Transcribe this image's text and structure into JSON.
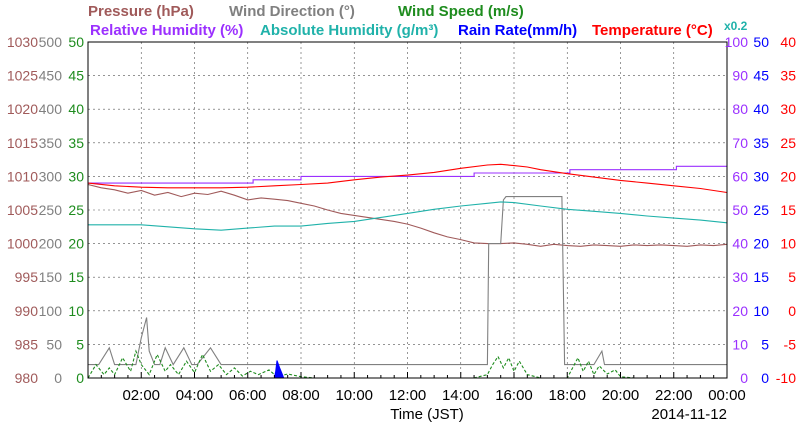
{
  "chart_data": {
    "type": "line",
    "title": "",
    "legend": {
      "row1": [
        {
          "key": "pressure",
          "label": "Pressure (hPa)",
          "color": "#a05a5a"
        },
        {
          "key": "wind_direction",
          "label": "Wind Direction (°)",
          "color": "#808080"
        },
        {
          "key": "wind_speed",
          "label": "Wind Speed (m/s)",
          "color": "#1e8c1e"
        }
      ],
      "row2": [
        {
          "key": "relative_humidity",
          "label": "Relative Humidity (%)",
          "color": "#9b30ff"
        },
        {
          "key": "absolute_humidity",
          "label": "Absolute Humidity (g/m³)",
          "color": "#20b2aa"
        },
        {
          "key": "rain_rate",
          "label": "Rain Rate(mm/h)",
          "color": "#0000ff"
        },
        {
          "key": "temperature",
          "label": "Temperature (°C)",
          "color": "#ff0000"
        }
      ],
      "abs_hum_scale_note": "x0.2"
    },
    "xlabel": "Time (JST)",
    "date": "2014-11-12",
    "x_range_hours": [
      0,
      24
    ],
    "x_ticks": [
      "02:00",
      "04:00",
      "06:00",
      "08:00",
      "10:00",
      "12:00",
      "14:00",
      "16:00",
      "18:00",
      "20:00",
      "22:00",
      "00:00"
    ],
    "y_axes": {
      "pressure": {
        "min": 980,
        "max": 1030,
        "ticks": [
          "1030",
          "1025",
          "1020",
          "1015",
          "1010",
          "1005",
          "1000",
          "995",
          "990",
          "985",
          "980"
        ],
        "color": "#a05a5a"
      },
      "wind_direction": {
        "min": 0,
        "max": 500,
        "ticks": [
          "500",
          "450",
          "400",
          "350",
          "300",
          "250",
          "200",
          "150",
          "100",
          "50",
          "0"
        ],
        "color": "#808080"
      },
      "wind_speed": {
        "min": 0,
        "max": 50,
        "ticks": [
          "50",
          "45",
          "40",
          "35",
          "30",
          "25",
          "20",
          "15",
          "10",
          "5",
          "0"
        ],
        "color": "#1e8c1e"
      },
      "relative_humidity": {
        "min": 0,
        "max": 100,
        "ticks": [
          "100",
          "90",
          "80",
          "70",
          "60",
          "50",
          "40",
          "30",
          "20",
          "10",
          "0"
        ],
        "color": "#9b30ff"
      },
      "rain_rate": {
        "min": 0,
        "max": 50,
        "ticks": [
          "50",
          "45",
          "40",
          "35",
          "30",
          "25",
          "20",
          "15",
          "10",
          "5",
          "0"
        ],
        "color": "#0000ff"
      },
      "temperature": {
        "min": -10,
        "max": 40,
        "ticks": [
          "40",
          "35",
          "30",
          "25",
          "20",
          "15",
          "10",
          "5",
          "0",
          "-5",
          "-10"
        ],
        "color": "#ff0000"
      }
    },
    "grid": true,
    "series": [
      {
        "key": "pressure",
        "x": [
          0,
          0.5,
          1,
          1.5,
          2,
          2.5,
          3,
          3.5,
          4,
          4.5,
          5,
          5.5,
          6,
          6.5,
          7,
          7.5,
          8,
          8.5,
          9,
          9.5,
          10,
          10.5,
          11,
          11.5,
          12,
          12.5,
          13,
          13.5,
          14,
          14.5,
          15,
          15.5,
          16,
          16.5,
          17,
          17.5,
          18,
          18.5,
          19,
          19.5,
          20,
          20.5,
          21,
          21.5,
          22,
          22.5,
          23,
          23.5,
          24
        ],
        "y": [
          1008.8,
          1008.3,
          1008.0,
          1007.5,
          1007.9,
          1007.2,
          1007.6,
          1007.0,
          1007.5,
          1007.3,
          1007.8,
          1007.2,
          1006.5,
          1006.8,
          1006.6,
          1006.4,
          1006.0,
          1005.6,
          1005.0,
          1004.5,
          1004.2,
          1003.9,
          1003.6,
          1003.3,
          1002.9,
          1002.3,
          1001.6,
          1001.0,
          1000.6,
          1000.1,
          1000.0,
          1000.0,
          1000.1,
          999.9,
          999.6,
          999.9,
          999.7,
          999.6,
          999.8,
          999.7,
          999.6,
          999.8,
          999.7,
          999.8,
          999.7,
          999.6,
          999.8,
          999.7,
          999.9
        ]
      },
      {
        "key": "wind_direction",
        "x": [
          0,
          0.4,
          0.8,
          1.0,
          1.8,
          2.0,
          2.2,
          2.3,
          2.5,
          2.7,
          2.9,
          3.2,
          3.6,
          3.9,
          4.1,
          4.6,
          5.0,
          5.3,
          6.0,
          7.0,
          8.0,
          9.0,
          10.0,
          11.0,
          12.0,
          13.0,
          14.0,
          15.0,
          15.05,
          15.1,
          15.3,
          15.5,
          15.6,
          15.7,
          16.0,
          16.2,
          17.0,
          17.8,
          17.9,
          18.0,
          18.5,
          19.0,
          19.3,
          19.4,
          19.6,
          19.8,
          20.0,
          21.0,
          22.0,
          23.0,
          24.0
        ],
        "y": [
          20,
          20,
          45,
          20,
          20,
          60,
          90,
          40,
          20,
          20,
          45,
          20,
          45,
          20,
          20,
          45,
          20,
          20,
          20,
          20,
          20,
          20,
          20,
          20,
          20,
          20,
          20,
          20,
          200,
          200,
          200,
          200,
          265,
          270,
          270,
          270,
          270,
          270,
          20,
          20,
          20,
          20,
          40,
          20,
          20,
          20,
          20,
          20,
          20,
          20,
          20
        ]
      },
      {
        "key": "wind_speed",
        "x": [
          0,
          0.3,
          0.6,
          0.8,
          1.0,
          1.3,
          1.6,
          1.8,
          2.0,
          2.3,
          2.6,
          2.9,
          3.1,
          3.4,
          3.7,
          4.0,
          4.3,
          4.6,
          4.9,
          5.2,
          5.5,
          5.8,
          6.1,
          6.4,
          6.8,
          7.1,
          7.5,
          8.0,
          8.5,
          9.0,
          10.0,
          11.0,
          12.0,
          13.0,
          14.0,
          14.5,
          15.0,
          15.2,
          15.4,
          15.6,
          15.8,
          16.0,
          16.2,
          16.5,
          17.0,
          17.5,
          18.0,
          18.2,
          18.4,
          18.6,
          18.8,
          19.0,
          19.2,
          19.5,
          19.8,
          20.0,
          20.5,
          21.0,
          22.0,
          23.0,
          24.0
        ],
        "y": [
          0,
          2,
          0.5,
          1.5,
          0.5,
          3,
          1,
          4,
          2,
          0.5,
          3.5,
          1,
          2,
          0.5,
          2.5,
          0.8,
          3.5,
          1,
          2,
          0.5,
          1.5,
          0.3,
          1,
          0.5,
          1.2,
          0.2,
          0.6,
          0.2,
          0,
          0,
          0,
          0,
          0,
          0,
          0,
          0,
          0.5,
          2,
          3.2,
          1.5,
          3,
          1,
          2.5,
          0.5,
          0,
          0,
          0,
          1.5,
          3,
          1,
          2.5,
          0.5,
          1.8,
          0.6,
          1.2,
          0.2,
          0,
          0,
          0,
          0,
          0
        ]
      },
      {
        "key": "relative_humidity",
        "x": [
          0,
          2,
          4,
          4.1,
          6,
          6.2,
          7,
          8,
          10,
          12,
          14,
          14.5,
          16,
          18,
          18.1,
          20,
          22,
          22.1,
          24
        ],
        "y": [
          58,
          58,
          58,
          58,
          58,
          59,
          59,
          60,
          60,
          60,
          60,
          61,
          61,
          61,
          62,
          62,
          62,
          63,
          63
        ]
      },
      {
        "key": "absolute_humidity",
        "x": [
          0,
          2,
          4,
          5,
          6,
          7,
          8,
          9,
          10,
          11,
          12,
          13,
          14,
          15,
          15.5,
          16,
          17,
          18,
          19,
          20,
          21,
          22,
          23,
          24
        ],
        "y": [
          22.8,
          22.8,
          22.2,
          22.0,
          22.3,
          22.6,
          22.6,
          23.0,
          23.3,
          23.9,
          24.5,
          25.1,
          25.6,
          26.0,
          26.2,
          26.1,
          25.6,
          25.1,
          24.8,
          24.5,
          24.1,
          23.8,
          23.5,
          23.1
        ]
      },
      {
        "key": "rain_rate",
        "x": [
          7.0,
          7.05,
          7.1,
          7.2,
          7.3,
          7.35
        ],
        "y": [
          0,
          1,
          2.6,
          1.5,
          0.5,
          0
        ]
      },
      {
        "key": "temperature",
        "x": [
          0,
          1,
          2,
          3,
          4,
          5,
          6,
          7,
          8,
          9,
          10,
          11,
          12,
          13,
          14,
          15,
          15.5,
          16,
          16.5,
          17,
          18,
          19,
          20,
          21,
          22,
          23,
          24
        ],
        "y": [
          19.0,
          18.6,
          18.4,
          18.3,
          18.3,
          18.3,
          18.4,
          18.6,
          18.8,
          19.0,
          19.5,
          19.9,
          20.2,
          20.6,
          21.2,
          21.7,
          21.8,
          21.6,
          21.4,
          21.0,
          20.4,
          19.9,
          19.4,
          19.0,
          18.6,
          18.2,
          17.6
        ]
      }
    ]
  }
}
